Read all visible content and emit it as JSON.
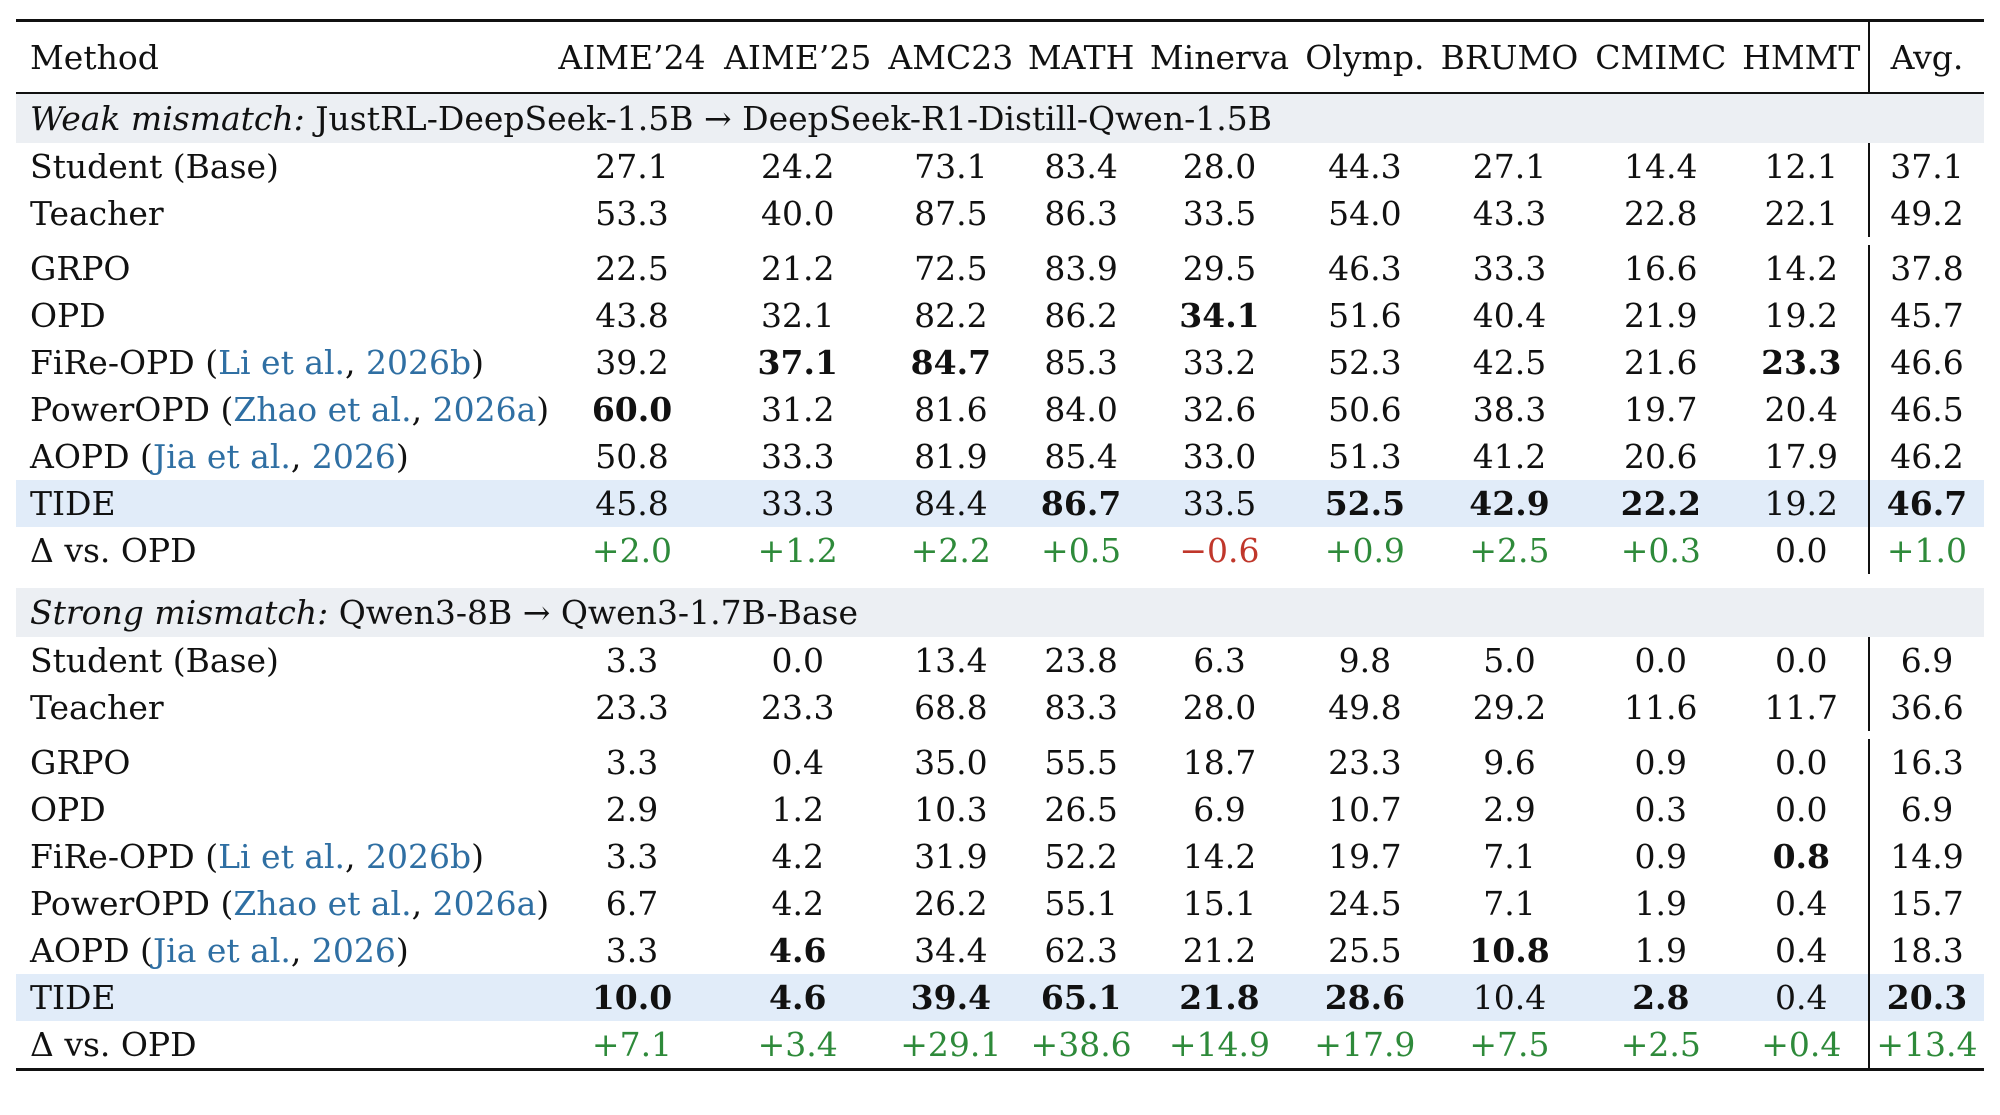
{
  "columns": [
    "Method",
    "AIME’24",
    "AIME’25",
    "AMC23",
    "MATH",
    "Minerva",
    "Olymp.",
    "BRUMO",
    "CMIMC",
    "HMMT",
    "Avg."
  ],
  "sections": [
    {
      "title_italic": "Weak mismatch:",
      "title_rest": "JustRL-DeepSeek-1.5B → DeepSeek-R1-Distill-Qwen-1.5B",
      "groups": [
        [
          {
            "method": "Student (Base)",
            "values": [
              "27.1",
              "24.2",
              "73.1",
              "83.4",
              "28.0",
              "44.3",
              "27.1",
              "14.4",
              "12.1",
              "37.1"
            ]
          },
          {
            "method": "Teacher",
            "values": [
              "53.3",
              "40.0",
              "87.5",
              "86.3",
              "33.5",
              "54.0",
              "43.3",
              "22.8",
              "22.1",
              "49.2"
            ]
          }
        ],
        [
          {
            "method": "GRPO",
            "values": [
              "22.5",
              "21.2",
              "72.5",
              "83.9",
              "29.5",
              "46.3",
              "33.3",
              "16.6",
              "14.2",
              "37.8"
            ]
          },
          {
            "method": "OPD",
            "values": [
              "43.8",
              "32.1",
              "82.2",
              "86.2",
              "34.1",
              "51.6",
              "40.4",
              "21.9",
              "19.2",
              "45.7"
            ],
            "bold": [
              4
            ]
          },
          {
            "method": "FiRe-OPD",
            "cite_author": "Li et al.",
            "cite_year": "2026b",
            "values": [
              "39.2",
              "37.1",
              "84.7",
              "85.3",
              "33.2",
              "52.3",
              "42.5",
              "21.6",
              "23.3",
              "46.6"
            ],
            "bold": [
              1,
              2,
              8
            ]
          },
          {
            "method": "PowerOPD",
            "cite_author": "Zhao et al.",
            "cite_year": "2026a",
            "values": [
              "60.0",
              "31.2",
              "81.6",
              "84.0",
              "32.6",
              "50.6",
              "38.3",
              "19.7",
              "20.4",
              "46.5"
            ],
            "bold": [
              0
            ]
          },
          {
            "method": "AOPD",
            "cite_author": "Jia et al.",
            "cite_year": "2026",
            "values": [
              "50.8",
              "33.3",
              "81.9",
              "85.4",
              "33.0",
              "51.3",
              "41.2",
              "20.6",
              "17.9",
              "46.2"
            ]
          },
          {
            "method": "TIDE",
            "highlight": true,
            "values": [
              "45.8",
              "33.3",
              "84.4",
              "86.7",
              "33.5",
              "52.5",
              "42.9",
              "22.2",
              "19.2",
              "46.7"
            ],
            "bold": [
              3,
              5,
              6,
              7,
              9
            ]
          }
        ]
      ],
      "delta": {
        "label": "Δ vs. OPD",
        "values": [
          "+2.0",
          "+1.2",
          "+2.2",
          "+0.5",
          "−0.6",
          "+0.9",
          "+2.5",
          "+0.3",
          "0.0",
          "+1.0"
        ]
      }
    },
    {
      "title_italic": "Strong mismatch:",
      "title_rest": "Qwen3-8B → Qwen3-1.7B-Base",
      "groups": [
        [
          {
            "method": "Student (Base)",
            "values": [
              "3.3",
              "0.0",
              "13.4",
              "23.8",
              "6.3",
              "9.8",
              "5.0",
              "0.0",
              "0.0",
              "6.9"
            ]
          },
          {
            "method": "Teacher",
            "values": [
              "23.3",
              "23.3",
              "68.8",
              "83.3",
              "28.0",
              "49.8",
              "29.2",
              "11.6",
              "11.7",
              "36.6"
            ]
          }
        ],
        [
          {
            "method": "GRPO",
            "values": [
              "3.3",
              "0.4",
              "35.0",
              "55.5",
              "18.7",
              "23.3",
              "9.6",
              "0.9",
              "0.0",
              "16.3"
            ]
          },
          {
            "method": "OPD",
            "values": [
              "2.9",
              "1.2",
              "10.3",
              "26.5",
              "6.9",
              "10.7",
              "2.9",
              "0.3",
              "0.0",
              "6.9"
            ]
          },
          {
            "method": "FiRe-OPD",
            "cite_author": "Li et al.",
            "cite_year": "2026b",
            "values": [
              "3.3",
              "4.2",
              "31.9",
              "52.2",
              "14.2",
              "19.7",
              "7.1",
              "0.9",
              "0.8",
              "14.9"
            ],
            "bold": [
              8
            ]
          },
          {
            "method": "PowerOPD",
            "cite_author": "Zhao et al.",
            "cite_year": "2026a",
            "values": [
              "6.7",
              "4.2",
              "26.2",
              "55.1",
              "15.1",
              "24.5",
              "7.1",
              "1.9",
              "0.4",
              "15.7"
            ]
          },
          {
            "method": "AOPD",
            "cite_author": "Jia et al.",
            "cite_year": "2026",
            "values": [
              "3.3",
              "4.6",
              "34.4",
              "62.3",
              "21.2",
              "25.5",
              "10.8",
              "1.9",
              "0.4",
              "18.3"
            ],
            "bold": [
              1,
              6
            ]
          },
          {
            "method": "TIDE",
            "highlight": true,
            "values": [
              "10.0",
              "4.6",
              "39.4",
              "65.1",
              "21.8",
              "28.6",
              "10.4",
              "2.8",
              "0.4",
              "20.3"
            ],
            "bold": [
              0,
              1,
              2,
              3,
              4,
              5,
              7,
              9
            ]
          }
        ]
      ],
      "delta": {
        "label": "Δ vs. OPD",
        "values": [
          "+7.1",
          "+3.4",
          "+29.1",
          "+38.6",
          "+14.9",
          "+17.9",
          "+7.5",
          "+2.5",
          "+0.4",
          "+13.4"
        ]
      }
    }
  ]
}
